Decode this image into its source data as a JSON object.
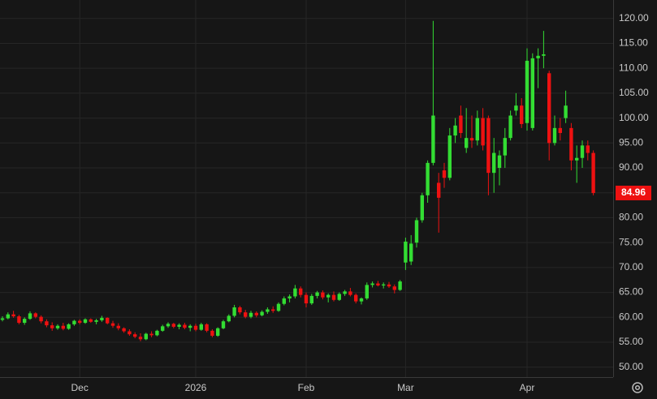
{
  "chart_data": {
    "type": "candlestick",
    "up_color": "#33dd33",
    "down_color": "#ee1111",
    "ylim": [
      48.0,
      123.7
    ],
    "yticks": [
      {
        "value": 50,
        "label": "50.00"
      },
      {
        "value": 55,
        "label": "55.00"
      },
      {
        "value": 60,
        "label": "60.00"
      },
      {
        "value": 65,
        "label": "65.00"
      },
      {
        "value": 70,
        "label": "70.00"
      },
      {
        "value": 75,
        "label": "75.00"
      },
      {
        "value": 80,
        "label": "80.00"
      },
      {
        "value": 85,
        "label": "85.00"
      },
      {
        "value": 90,
        "label": "90.00"
      },
      {
        "value": 95,
        "label": "95.00"
      },
      {
        "value": 100,
        "label": "100.00"
      },
      {
        "value": 105,
        "label": "105.00"
      },
      {
        "value": 110,
        "label": "110.00"
      },
      {
        "value": 115,
        "label": "115.00"
      },
      {
        "value": 120,
        "label": "120.00"
      }
    ],
    "grid": true,
    "categories": [
      null,
      null,
      null,
      null,
      null,
      null,
      null,
      null,
      null,
      null,
      null,
      null,
      null,
      null,
      "Dec",
      null,
      null,
      null,
      null,
      null,
      null,
      null,
      null,
      null,
      null,
      null,
      null,
      null,
      null,
      null,
      null,
      null,
      null,
      null,
      null,
      "2026",
      null,
      null,
      null,
      null,
      null,
      null,
      null,
      null,
      null,
      null,
      null,
      null,
      null,
      null,
      null,
      null,
      null,
      null,
      null,
      "Feb",
      null,
      null,
      null,
      null,
      null,
      null,
      null,
      null,
      null,
      null,
      null,
      null,
      null,
      null,
      null,
      null,
      null,
      "Mar",
      null,
      null,
      null,
      null,
      null,
      null,
      null,
      null,
      null,
      null,
      null,
      null,
      null,
      null,
      null,
      null,
      null,
      null,
      null,
      null,
      null,
      "Apr",
      null,
      null,
      null,
      null,
      null,
      null,
      null,
      null,
      null,
      null,
      null,
      null
    ],
    "open": [
      59.5,
      59.8,
      60.6,
      60.2,
      58.9,
      59.7,
      60.8,
      60.1,
      59.2,
      58.4,
      57.8,
      58.3,
      57.7,
      58.6,
      59.3,
      58.9,
      59.6,
      59.1,
      59.4,
      59.9,
      58.8,
      58.3,
      57.8,
      57.2,
      56.6,
      56.1,
      55.6,
      56.7,
      56.4,
      57.3,
      58.2,
      58.7,
      58.1,
      58.5,
      57.9,
      58.3,
      57.5,
      58.6,
      57.3,
      56.3,
      57.8,
      59.2,
      60.3,
      62.0,
      61.0,
      60.1,
      60.9,
      60.4,
      61.1,
      61.6,
      61.3,
      62.7,
      63.8,
      64.2,
      65.8,
      64.5,
      62.8,
      64.3,
      65.0,
      64.0,
      64.5,
      63.5,
      64.7,
      65.2,
      64.5,
      63.2,
      63.8,
      66.5,
      66.8,
      66.4,
      66.6,
      66.2,
      65.5,
      71.0,
      71.2,
      75.0,
      79.5,
      84.5,
      91.0,
      87.0,
      89.5,
      88.0,
      96.5,
      100.5,
      94.0,
      96.0,
      95.5,
      100.0,
      100.0,
      89.0,
      90.0,
      92.5,
      96.0,
      101.5,
      102.5,
      99.0,
      98.0,
      112.0,
      112.5,
      109.0,
      95.0,
      98.0,
      100.0,
      98.0,
      91.5,
      92.0,
      94.5,
      93.0
    ],
    "high": [
      60.2,
      61.0,
      61.3,
      60.5,
      60.0,
      61.2,
      61.0,
      60.4,
      59.6,
      59.0,
      58.6,
      58.9,
      58.8,
      59.5,
      59.6,
      59.8,
      59.8,
      59.7,
      60.3,
      60.0,
      59.3,
      58.8,
      58.0,
      57.6,
      57.0,
      56.8,
      56.9,
      57.2,
      57.5,
      58.5,
      59.0,
      58.9,
      58.8,
      58.9,
      58.6,
      58.7,
      58.9,
      58.8,
      57.6,
      58.0,
      59.5,
      60.6,
      62.5,
      62.3,
      61.5,
      61.3,
      61.2,
      61.4,
      62.0,
      62.2,
      63.0,
      64.2,
      64.6,
      66.5,
      66.2,
      65.0,
      64.7,
      65.3,
      65.4,
      64.8,
      65.2,
      65.0,
      65.5,
      65.9,
      64.8,
      64.0,
      67.0,
      67.2,
      67.3,
      67.0,
      67.1,
      66.6,
      67.5,
      76.0,
      76.5,
      80.0,
      85.0,
      91.5,
      119.5,
      89.0,
      91.0,
      98.0,
      100.0,
      102.5,
      102.0,
      100.5,
      101.5,
      102.0,
      100.5,
      96.0,
      93.5,
      98.0,
      101.5,
      105.0,
      104.0,
      114.0,
      113.0,
      114.0,
      117.5,
      109.5,
      100.5,
      100.0,
      105.5,
      99.0,
      94.5,
      95.5,
      95.5,
      93.5
    ],
    "low": [
      59.2,
      59.6,
      59.9,
      58.6,
      58.5,
      59.5,
      59.8,
      58.8,
      58.0,
      57.3,
      57.5,
      57.4,
      57.5,
      58.3,
      58.6,
      58.7,
      58.9,
      58.6,
      59.1,
      58.6,
      57.9,
      57.4,
      56.9,
      56.3,
      55.8,
      55.2,
      55.4,
      56.0,
      56.2,
      57.1,
      57.9,
      57.8,
      57.6,
      57.6,
      57.2,
      57.2,
      57.3,
      57.0,
      56.0,
      56.1,
      57.6,
      59.0,
      60.0,
      60.6,
      59.8,
      59.8,
      60.0,
      60.2,
      60.7,
      60.9,
      61.1,
      62.4,
      63.0,
      63.8,
      64.0,
      62.0,
      62.5,
      63.8,
      63.6,
      63.0,
      63.2,
      63.3,
      64.3,
      64.2,
      62.8,
      62.6,
      63.5,
      66.0,
      66.2,
      65.8,
      65.9,
      64.8,
      65.3,
      69.5,
      70.5,
      74.0,
      79.0,
      83.0,
      90.5,
      77.0,
      86.0,
      87.5,
      95.0,
      96.0,
      93.0,
      94.0,
      94.5,
      93.5,
      84.5,
      85.0,
      86.5,
      90.0,
      95.5,
      100.5,
      98.0,
      97.5,
      97.5,
      106.0,
      110.0,
      91.5,
      94.5,
      95.5,
      99.0,
      89.5,
      87.0,
      90.0,
      91.5,
      84.5
    ],
    "close": [
      59.8,
      60.6,
      60.2,
      58.9,
      59.7,
      60.8,
      60.1,
      59.2,
      58.4,
      57.8,
      58.3,
      57.7,
      58.6,
      59.3,
      58.9,
      59.6,
      59.1,
      59.4,
      59.9,
      58.8,
      58.3,
      57.8,
      57.2,
      56.6,
      56.1,
      55.6,
      56.7,
      56.4,
      57.3,
      58.2,
      58.7,
      58.1,
      58.5,
      57.9,
      58.3,
      57.5,
      58.6,
      57.3,
      56.3,
      57.8,
      59.2,
      60.3,
      62.0,
      61.0,
      60.1,
      60.9,
      60.4,
      61.1,
      61.6,
      61.3,
      62.7,
      63.8,
      64.2,
      65.8,
      64.5,
      62.8,
      64.3,
      65.0,
      64.0,
      64.5,
      63.5,
      64.7,
      65.2,
      64.5,
      63.2,
      63.8,
      66.5,
      66.8,
      66.4,
      66.6,
      66.2,
      65.5,
      67.2,
      75.2,
      74.8,
      79.5,
      84.5,
      91.0,
      100.5,
      84.0,
      88.0,
      96.5,
      98.5,
      97.0,
      96.0,
      95.5,
      100.0,
      94.5,
      89.0,
      93.0,
      92.5,
      96.0,
      100.5,
      102.5,
      98.8,
      111.5,
      112.0,
      112.5,
      112.8,
      95.0,
      98.0,
      97.0,
      102.5,
      91.5,
      92.0,
      94.5,
      93.0,
      84.96
    ]
  }
}
